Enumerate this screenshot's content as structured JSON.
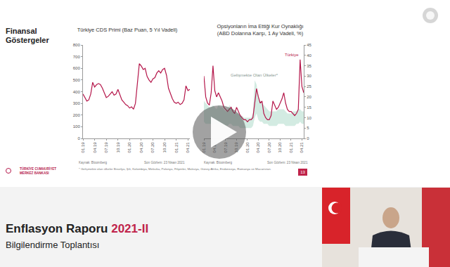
{
  "slide": {
    "heading": "Finansal Göstergeler",
    "page": "13",
    "logo_text": "TÜRKİYE CUMHURİYET MERKEZ BANKASI",
    "footnote": "* Gelişmekte olan ülkeler Brezilya, Şili, Kolombiya, Meksika, Polonya, Filipinler, Malezya, Güney Afrika, Endonezya, Romanya ve Macaristan."
  },
  "chart_data": [
    {
      "type": "line",
      "title": "Türkiye CDS Primi (Baz Puan, 5 Yıl Vadeli)",
      "categories": [
        "01.19",
        null,
        null,
        null,
        null,
        null,
        "04.19",
        null,
        null,
        null,
        null,
        null,
        "07.19",
        null,
        null,
        null,
        null,
        null,
        "10.19",
        null,
        null,
        null,
        null,
        null,
        "01.20",
        null,
        null,
        null,
        null,
        null,
        "04.20",
        null,
        null,
        null,
        null,
        null,
        "07.20",
        null,
        null,
        null,
        null,
        null,
        "10.20",
        null,
        null,
        null,
        null,
        null,
        "01.21",
        null,
        null,
        null,
        null,
        null,
        "04.21",
        null
      ],
      "series": [
        {
          "color": "#b5174b",
          "values": [
            380,
            350,
            320,
            330,
            380,
            480,
            440,
            460,
            470,
            460,
            430,
            390,
            350,
            360,
            380,
            400,
            370,
            380,
            420,
            380,
            330,
            310,
            290,
            280,
            260,
            270,
            250,
            300,
            450,
            640,
            620,
            590,
            600,
            530,
            500,
            480,
            510,
            520,
            560,
            580,
            560,
            590,
            600,
            540,
            430,
            380,
            340,
            310,
            300,
            310,
            290,
            300,
            330,
            450,
            410,
            420
          ]
        }
      ],
      "ylim": [
        0,
        800
      ],
      "yticks": [
        0,
        100,
        200,
        300,
        400,
        500,
        600,
        700,
        800
      ],
      "grid": false,
      "source": "Kaynak: Bloomberg",
      "note": "Son Gözlem: 23 Nisan 2021"
    },
    {
      "type": "line",
      "title": "Opsiyonların İma Ettiği Kur Oynaklığı (ABD Dolarına Karşı, 1 Ay Vadeli, %)",
      "categories": [
        "01.19",
        null,
        null,
        null,
        null,
        null,
        "04.19",
        null,
        null,
        null,
        null,
        null,
        "07.19",
        null,
        null,
        null,
        null,
        null,
        "10.19",
        null,
        null,
        null,
        null,
        null,
        "01.20",
        null,
        null,
        null,
        null,
        null,
        "04.20",
        null,
        null,
        null,
        null,
        null,
        "07.20",
        null,
        null,
        null,
        null,
        null,
        "10.20",
        null,
        null,
        null,
        null,
        null,
        "01.21",
        null,
        null,
        null,
        null,
        null,
        "04.21",
        null
      ],
      "series": [
        {
          "name": "Gelişmekte Olan Ülkeler*",
          "type": "band",
          "color": "#d3ebe2",
          "low": [
            8,
            7,
            7,
            7,
            7,
            7,
            7,
            6,
            7,
            7,
            7,
            6,
            6,
            6,
            7,
            7,
            6,
            6,
            6,
            6,
            5,
            5,
            5,
            5,
            5,
            5,
            5,
            6,
            10,
            12,
            9,
            8,
            8,
            7,
            7,
            7,
            6,
            6,
            6,
            6,
            6,
            7,
            7,
            7,
            7,
            6,
            6,
            6,
            6,
            6,
            6,
            7,
            7,
            8,
            7,
            7
          ],
          "high": [
            18,
            17,
            16,
            15,
            15,
            16,
            15,
            14,
            16,
            15,
            15,
            14,
            13,
            13,
            16,
            15,
            13,
            12,
            12,
            12,
            11,
            11,
            10,
            10,
            10,
            10,
            10,
            12,
            28,
            26,
            20,
            18,
            17,
            16,
            15,
            14,
            13,
            13,
            13,
            13,
            13,
            14,
            14,
            14,
            14,
            13,
            12,
            12,
            12,
            13,
            13,
            13,
            14,
            14,
            13,
            13
          ]
        },
        {
          "name": "Türkiye",
          "color": "#b5174b",
          "values": [
            30,
            20,
            17,
            16,
            22,
            35,
            23,
            20,
            22,
            20,
            18,
            15,
            14,
            13,
            14,
            15,
            13,
            12,
            15,
            13,
            11,
            10,
            9,
            9,
            8,
            9,
            9,
            10,
            18,
            24,
            20,
            17,
            18,
            12,
            10,
            9,
            9,
            11,
            18,
            16,
            14,
            15,
            17,
            19,
            22,
            17,
            14,
            13,
            13,
            12,
            11,
            12,
            14,
            38,
            25,
            22
          ]
        }
      ],
      "ylim": [
        0,
        45
      ],
      "yticks": [
        0,
        5,
        10,
        15,
        20,
        25,
        30,
        35,
        40,
        45
      ],
      "grid": false,
      "source": "Kaynak: Bloomberg",
      "note": "Son Gözlem: 23 Nisan 2021"
    }
  ],
  "banner": {
    "title": "Enflasyon Raporu",
    "edition": "2021-II",
    "subtitle": "Bilgilendirme Toplantısı"
  }
}
